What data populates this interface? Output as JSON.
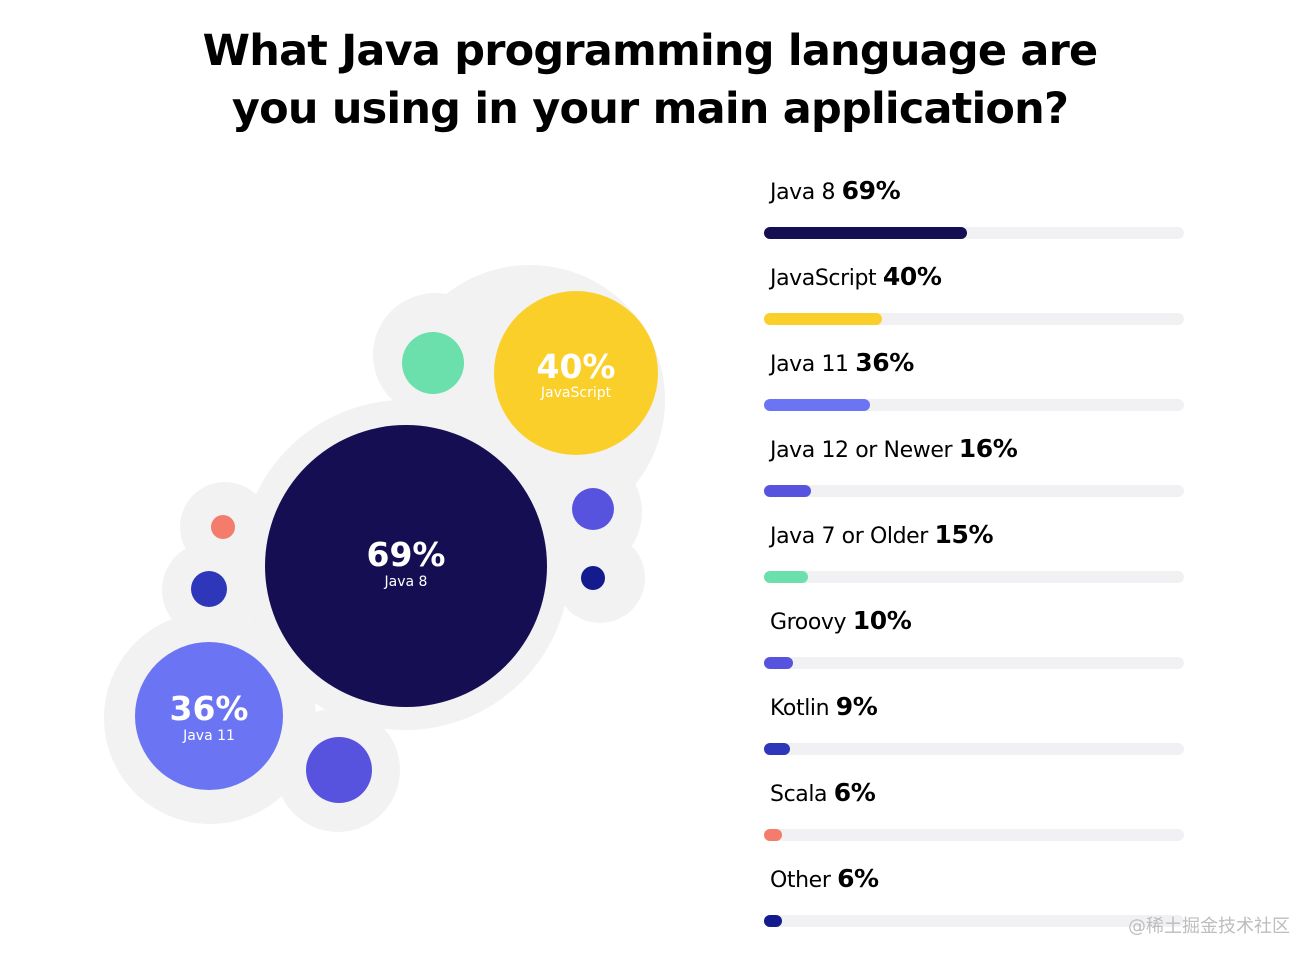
{
  "chart_data": {
    "type": "bar",
    "title": "What Java programming language are you using in your main application?",
    "title_lines": [
      "What Java programming language are",
      "you using in your main application?"
    ],
    "unit": "%",
    "xlabel": "",
    "ylabel": "",
    "ylim": [
      0,
      100
    ],
    "categories": [
      "Java 8",
      "JavaScript",
      "Java 11",
      "Java 12 or Newer",
      "Java 7 or Older",
      "Groovy",
      "Kotlin",
      "Scala",
      "Other"
    ],
    "values": [
      69,
      40,
      36,
      16,
      15,
      10,
      9,
      6,
      6
    ],
    "value_labels": [
      "69%",
      "40%",
      "36%",
      "16%",
      "15%",
      "10%",
      "9%",
      "6%",
      "6%"
    ],
    "colors": [
      "#160e52",
      "#fbcf2a",
      "#6b75f3",
      "#5853df",
      "#6bdfac",
      "#5853df",
      "#2e36b9",
      "#f47c6c",
      "#131b8e"
    ],
    "bubble_labels": [
      {
        "pct": "69%",
        "name": "Java 8"
      },
      {
        "pct": "40%",
        "name": "JavaScript"
      },
      {
        "pct": "36%",
        "name": "Java 11"
      }
    ]
  },
  "watermark": "@稀土掘金技术社区"
}
